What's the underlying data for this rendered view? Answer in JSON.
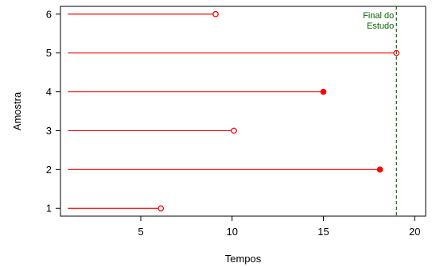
{
  "chart_data": {
    "type": "lollipop",
    "xlabel": "Tempos",
    "ylabel": "Amostra",
    "xlim": [
      0.6,
      20.6
    ],
    "ylim": [
      0.8,
      6.2
    ],
    "x_ticks": [
      5,
      10,
      15,
      20
    ],
    "y_ticks": [
      1,
      2,
      3,
      4,
      5,
      6
    ],
    "x_tick_labels": [
      "5",
      "10",
      "15",
      "20"
    ],
    "y_tick_labels": [
      "1",
      "2",
      "3",
      "4",
      "5",
      "6"
    ],
    "grid": false,
    "start_x": 1,
    "series": [
      {
        "values": [
          {
            "sample": 1,
            "time": 6.1,
            "event": false
          },
          {
            "sample": 2,
            "time": 18.1,
            "event": true
          },
          {
            "sample": 3,
            "time": 10.1,
            "event": false
          },
          {
            "sample": 4,
            "time": 15.0,
            "event": true
          },
          {
            "sample": 5,
            "time": 19.0,
            "event": false
          },
          {
            "sample": 6,
            "time": 9.1,
            "event": false
          }
        ]
      }
    ],
    "reference_line": {
      "x": 19,
      "label_lines": [
        "Final do",
        "Estudo"
      ]
    },
    "colors": {
      "segment": "#ff0000",
      "reference": "#006400",
      "axis": "#000000"
    }
  }
}
